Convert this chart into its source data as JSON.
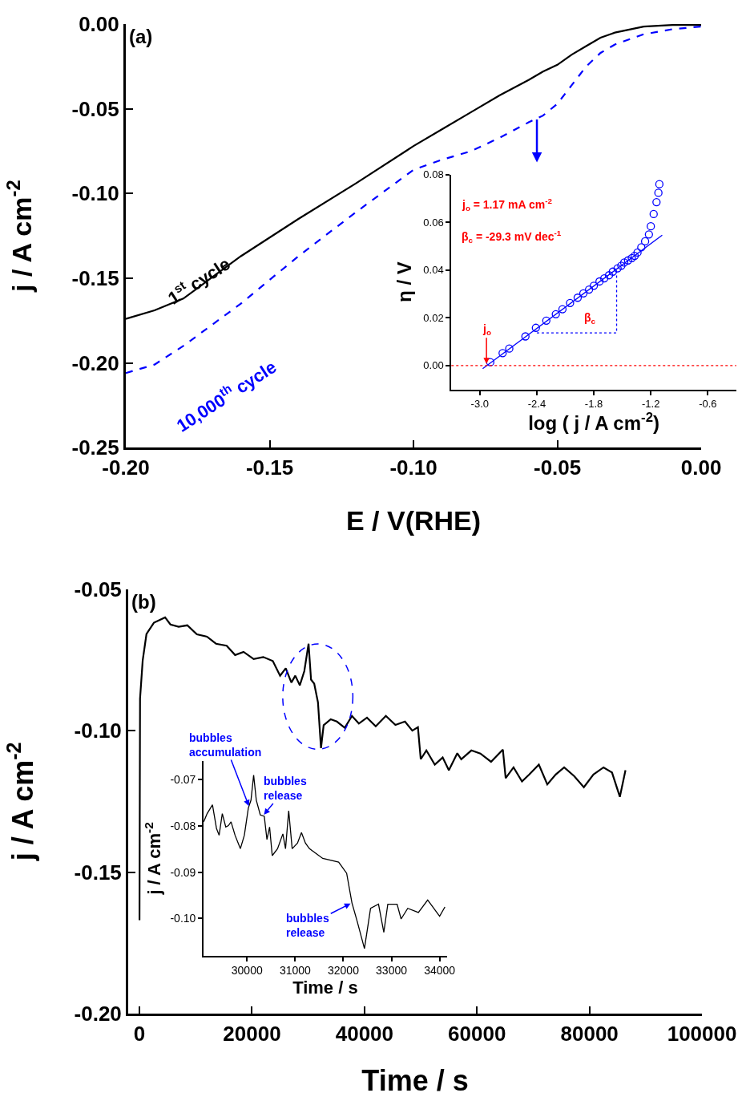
{
  "chart_data": [
    {
      "type": "line",
      "title": "(a)",
      "xlabel": "E / V(RHE)",
      "ylabel": "j / A cm$^{-2}$",
      "xlim": [
        -0.2,
        0
      ],
      "ylim": [
        -0.25,
        0
      ],
      "xticks": [
        {
          "value": -0.2,
          "label": "-0.20"
        },
        {
          "value": -0.15,
          "label": "-0.15"
        },
        {
          "value": -0.1,
          "label": "-0.10"
        },
        {
          "value": -0.05,
          "label": "-0.05"
        },
        {
          "value": 0,
          "label": "0.00"
        }
      ],
      "yticks": [
        {
          "value": 0,
          "label": "0.00"
        },
        {
          "value": -0.05,
          "label": "-0.05"
        },
        {
          "value": -0.1,
          "label": "-0.10"
        },
        {
          "value": -0.15,
          "label": "-0.15"
        },
        {
          "value": -0.2,
          "label": "-0.20"
        },
        {
          "value": -0.25,
          "label": "-0.25"
        }
      ],
      "grid": false,
      "legend": false,
      "x": [
        -0.2,
        -0.19,
        -0.18,
        -0.16,
        -0.14,
        -0.12,
        -0.1,
        -0.09,
        -0.08,
        -0.07,
        -0.06,
        -0.055,
        -0.05,
        -0.045,
        -0.04,
        -0.035,
        -0.03,
        -0.02,
        -0.01,
        0
      ],
      "series": [
        {
          "name": "1$^{st}$ cycle",
          "color": "#000000",
          "line_style": "solid",
          "values": [
            -0.174,
            -0.169,
            -0.162,
            -0.137,
            -0.115,
            -0.094,
            -0.072,
            -0.062,
            -0.052,
            -0.042,
            -0.033,
            -0.028,
            -0.024,
            -0.018,
            -0.013,
            -0.008,
            -0.005,
            -0.0014,
            -0.0005,
            -0.0005
          ]
        },
        {
          "name": "10,000$^{th}$ cycle",
          "color": "#0000ff",
          "line_style": "dashed",
          "values": [
            -0.206,
            -0.201,
            -0.19,
            -0.165,
            -0.137,
            -0.111,
            -0.086,
            -0.08,
            -0.075,
            -0.067,
            -0.058,
            -0.054,
            -0.047,
            -0.036,
            -0.025,
            -0.017,
            -0.012,
            -0.006,
            -0.003,
            -0.0014
          ]
        }
      ]
    },
    {
      "type": "scatter",
      "xlabel": "log ( j / A cm$^{-2}$)",
      "ylabel": "η / V",
      "xlim": [
        -3.3,
        -0.3
      ],
      "ylim": [
        -0.01,
        0.08
      ],
      "xticks": [
        {
          "value": -3.0,
          "label": "-3.0"
        },
        {
          "value": -2.4,
          "label": "-2.4"
        },
        {
          "value": -1.8,
          "label": "-1.8"
        },
        {
          "value": -1.2,
          "label": "-1.2"
        },
        {
          "value": -0.6,
          "label": "-0.6"
        }
      ],
      "yticks": [
        {
          "value": 0,
          "label": "0.00"
        },
        {
          "value": 0.02,
          "label": "0.02"
        },
        {
          "value": 0.04,
          "label": "0.04"
        },
        {
          "value": 0.06,
          "label": "0.06"
        },
        {
          "value": 0.08,
          "label": "0.08"
        }
      ],
      "grid": false,
      "legend": false,
      "x": [
        -2.89,
        -2.76,
        -2.69,
        -2.52,
        -2.41,
        -2.3,
        -2.2,
        -2.13,
        -2.05,
        -1.97,
        -1.91,
        -1.85,
        -1.8,
        -1.74,
        -1.69,
        -1.64,
        -1.6,
        -1.55,
        -1.51,
        -1.48,
        -1.44,
        -1.4,
        -1.37,
        -1.34,
        -1.3,
        -1.26,
        -1.22,
        -1.2,
        -1.17,
        -1.14,
        -1.12,
        -1.11
      ],
      "series": [
        {
          "color": "#0000ff",
          "marker": "circle",
          "values": [
            0.0014,
            0.0052,
            0.0071,
            0.0122,
            0.0158,
            0.0188,
            0.0215,
            0.0236,
            0.0262,
            0.0284,
            0.0302,
            0.0318,
            0.0334,
            0.0352,
            0.0365,
            0.0378,
            0.0393,
            0.0407,
            0.0418,
            0.0431,
            0.044,
            0.045,
            0.0459,
            0.0473,
            0.0495,
            0.052,
            0.0549,
            0.0583,
            0.0634,
            0.0684,
            0.0723,
            0.0759
          ]
        },
        {
          "type": "line",
          "color": "#0000ff",
          "line_style": "solid",
          "marker": "none",
          "x": [
            -2.97,
            -1.08
          ],
          "values": [
            -0.0013,
            0.0546
          ]
        },
        {
          "type": "line",
          "color": "#0000ff",
          "line_style": "dotted",
          "marker": "none",
          "x": [
            -2.4,
            -1.56,
            -1.56
          ],
          "values": [
            0.0137,
            0.0137,
            0.0405
          ]
        }
      ],
      "ref_lines": [
        {
          "axis": "y",
          "value": 0,
          "color": "#ff0000",
          "line_style": "dotted"
        }
      ],
      "annotations": [
        "j$_{o}$ = 1.17 mA cm$^{-2}$",
        "β$_{c}$ = -29.3 mV dec$^{-1}$",
        "β$_{c}$",
        {
          "text": "j$_{o}$",
          "x": -2.93,
          "y": 0
        }
      ]
    },
    {
      "type": "line",
      "title": "(b)",
      "xlabel": "Time / s",
      "ylabel": "j / A cm$^{-2}$",
      "xlim": [
        -2000,
        100000
      ],
      "ylim": [
        -0.2,
        -0.05
      ],
      "xticks": [
        0,
        20000,
        40000,
        60000,
        80000,
        100000
      ],
      "yticks": [
        {
          "value": -0.05,
          "label": "-0.05"
        },
        {
          "value": -0.1,
          "label": "-0.10"
        },
        {
          "value": -0.15,
          "label": "-0.15"
        },
        {
          "value": -0.2,
          "label": "-0.20"
        }
      ],
      "grid": false,
      "legend": false,
      "x": [
        0,
        100,
        570,
        1240,
        2560,
        4550,
        5500,
        6960,
        8500,
        10200,
        12000,
        13600,
        15500,
        17000,
        18500,
        20300,
        22000,
        23700,
        25000,
        26000,
        27000,
        27700,
        28500,
        29300,
        30060,
        30500,
        31060,
        31730,
        32270,
        32740,
        34000,
        35090,
        36500,
        37770,
        39000,
        40440,
        42000,
        43800,
        45500,
        47200,
        48500,
        49500,
        50000,
        51000,
        52500,
        53900,
        55000,
        56500,
        57200,
        59000,
        60600,
        62500,
        64600,
        65100,
        66500,
        68000,
        69300,
        71000,
        72500,
        74000,
        75500,
        77300,
        79000,
        80700,
        82500,
        84000,
        85400,
        86400
      ],
      "series": [
        {
          "color": "#000000",
          "values": [
            -0.167,
            -0.0887,
            -0.0752,
            -0.0659,
            -0.0619,
            -0.06,
            -0.0625,
            -0.0633,
            -0.0628,
            -0.066,
            -0.0668,
            -0.0693,
            -0.07,
            -0.0733,
            -0.0722,
            -0.0747,
            -0.074,
            -0.0754,
            -0.0806,
            -0.078,
            -0.083,
            -0.0806,
            -0.084,
            -0.079,
            -0.0693,
            -0.082,
            -0.0834,
            -0.09,
            -0.1062,
            -0.0981,
            -0.096,
            -0.0968,
            -0.099,
            -0.0948,
            -0.0975,
            -0.0954,
            -0.0985,
            -0.0948,
            -0.098,
            -0.0968,
            -0.1,
            -0.0988,
            -0.1101,
            -0.107,
            -0.112,
            -0.1095,
            -0.114,
            -0.108,
            -0.1101,
            -0.107,
            -0.1081,
            -0.111,
            -0.1067,
            -0.1168,
            -0.113,
            -0.118,
            -0.1155,
            -0.112,
            -0.119,
            -0.1155,
            -0.113,
            -0.1161,
            -0.12,
            -0.1155,
            -0.113,
            -0.1148,
            -0.1234,
            -0.114
          ]
        }
      ]
    },
    {
      "type": "line",
      "xlabel": "Time / s",
      "ylabel": "j / A cm$^{-2}$",
      "xlim": [
        29100,
        34150
      ],
      "ylim": [
        -0.108,
        -0.066
      ],
      "xticks": [
        30000,
        31000,
        32000,
        33000,
        34000
      ],
      "yticks": [
        {
          "value": -0.07,
          "label": "-0.07"
        },
        {
          "value": -0.08,
          "label": "-0.08"
        },
        {
          "value": -0.09,
          "label": "-0.09"
        },
        {
          "value": -0.1,
          "label": "-0.10"
        }
      ],
      "grid": false,
      "legend": false,
      "x": [
        29100,
        29172,
        29283,
        29366,
        29421,
        29487,
        29559,
        29614,
        29669,
        29752,
        29862,
        29945,
        30028,
        30083,
        30138,
        30193,
        30276,
        30359,
        30414,
        30469,
        30524,
        30634,
        30745,
        30800,
        30866,
        30938,
        31048,
        31131,
        31214,
        31297,
        31572,
        31903,
        32069,
        32179,
        32290,
        32439,
        32566,
        32731,
        32841,
        32924,
        33117,
        33200,
        33338,
        33559,
        33752,
        34000,
        34110
      ],
      "series": [
        {
          "color": "#000000",
          "values": [
            -0.0791,
            -0.0773,
            -0.0754,
            -0.0805,
            -0.082,
            -0.0773,
            -0.0802,
            -0.0799,
            -0.0791,
            -0.082,
            -0.0849,
            -0.082,
            -0.0761,
            -0.0744,
            -0.069,
            -0.0744,
            -0.0776,
            -0.0779,
            -0.0829,
            -0.0802,
            -0.0864,
            -0.0849,
            -0.0817,
            -0.0849,
            -0.0767,
            -0.0849,
            -0.0837,
            -0.0814,
            -0.0837,
            -0.0849,
            -0.087,
            -0.0878,
            -0.0902,
            -0.0966,
            -0.1007,
            -0.1065,
            -0.0978,
            -0.0969,
            -0.103,
            -0.0969,
            -0.0969,
            -0.1001,
            -0.0978,
            -0.0987,
            -0.096,
            -0.0995,
            -0.0975
          ]
        }
      ],
      "annotations": [
        {
          "text": "bubbles\naccumulation",
          "x": 30050,
          "y": -0.076
        },
        {
          "text": "bubbles\nrelease",
          "x": 30330,
          "y": -0.0778
        },
        {
          "text": "bubbles\nrelease",
          "x": 32180,
          "y": -0.0966
        }
      ]
    }
  ]
}
